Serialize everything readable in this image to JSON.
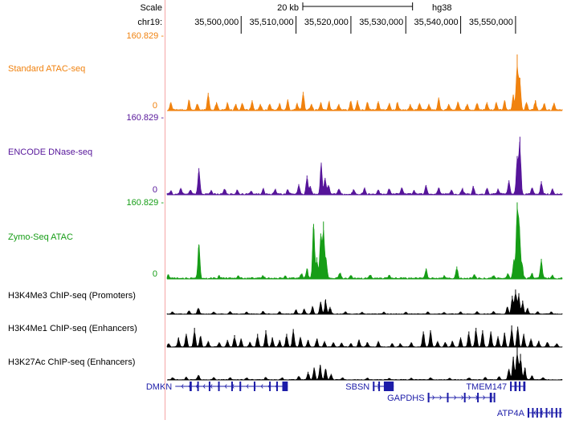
{
  "chart_data": {
    "type": "area",
    "genome": "hg38",
    "chromosome": "chr19",
    "ruler": {
      "scale_label": "Scale",
      "scale_bar_label": "20 kb",
      "scale_bar_kb": 20,
      "chrom_label": "chr19:",
      "tick_positions": [
        35500000,
        35510000,
        35520000,
        35530000,
        35540000,
        35550000
      ],
      "tick_labels": [
        "35,500,000",
        "35,510,000",
        "35,520,000",
        "35,530,000",
        "35,540,000",
        "35,550,000"
      ]
    },
    "x_range_bp": [
      35486500,
      35558500
    ],
    "tracks": [
      {
        "name": "Standard ATAC-seq",
        "color": "#f0820f",
        "ymax_label": "160.829",
        "ymin_label": "0",
        "ylim": [
          0,
          160.829
        ],
        "peaks": [
          [
            35487200,
            18
          ],
          [
            35490500,
            22
          ],
          [
            35492000,
            14
          ],
          [
            35494000,
            38
          ],
          [
            35495500,
            18
          ],
          [
            35497500,
            16
          ],
          [
            35499000,
            14
          ],
          [
            35500200,
            16
          ],
          [
            35502000,
            22
          ],
          [
            35503500,
            14
          ],
          [
            35505200,
            14
          ],
          [
            35507000,
            16
          ],
          [
            35508500,
            24
          ],
          [
            35510200,
            14
          ],
          [
            35511300,
            40
          ],
          [
            35512800,
            14
          ],
          [
            35514500,
            18
          ],
          [
            35516000,
            18
          ],
          [
            35517800,
            14
          ],
          [
            35520000,
            20
          ],
          [
            35521200,
            22
          ],
          [
            35523000,
            18
          ],
          [
            35525000,
            20
          ],
          [
            35527000,
            16
          ],
          [
            35528500,
            18
          ],
          [
            35530800,
            14
          ],
          [
            35532500,
            16
          ],
          [
            35534200,
            14
          ],
          [
            35536000,
            28
          ],
          [
            35537800,
            14
          ],
          [
            35539500,
            18
          ],
          [
            35541200,
            14
          ],
          [
            35543000,
            16
          ],
          [
            35544800,
            18
          ],
          [
            35546500,
            16
          ],
          [
            35548000,
            22
          ],
          [
            35549600,
            34
          ],
          [
            35550300,
            120
          ],
          [
            35550800,
            70
          ],
          [
            35552000,
            18
          ],
          [
            35553600,
            22
          ],
          [
            35555200,
            14
          ],
          [
            35557000,
            16
          ]
        ]
      },
      {
        "name": "ENCODE DNase-seq",
        "color": "#56159a",
        "ymax_label": "160.829",
        "ymin_label": "0",
        "ylim": [
          0,
          160.829
        ],
        "peaks": [
          [
            35487200,
            8
          ],
          [
            35489000,
            14
          ],
          [
            35490800,
            10
          ],
          [
            35492300,
            55
          ],
          [
            35494500,
            8
          ],
          [
            35497000,
            12
          ],
          [
            35499300,
            10
          ],
          [
            35501800,
            8
          ],
          [
            35504000,
            12
          ],
          [
            35506200,
            10
          ],
          [
            35508500,
            10
          ],
          [
            35510500,
            22
          ],
          [
            35512000,
            40
          ],
          [
            35512600,
            18
          ],
          [
            35514600,
            65
          ],
          [
            35515300,
            35
          ],
          [
            35515900,
            20
          ],
          [
            35517800,
            12
          ],
          [
            35520500,
            10
          ],
          [
            35522500,
            14
          ],
          [
            35525000,
            10
          ],
          [
            35527000,
            12
          ],
          [
            35529300,
            14
          ],
          [
            35531500,
            10
          ],
          [
            35533700,
            20
          ],
          [
            35536000,
            14
          ],
          [
            35538300,
            10
          ],
          [
            35540300,
            12
          ],
          [
            35542300,
            18
          ],
          [
            35544800,
            14
          ],
          [
            35546800,
            12
          ],
          [
            35548800,
            30
          ],
          [
            35550300,
            80
          ],
          [
            35550800,
            120
          ],
          [
            35553000,
            14
          ],
          [
            35554700,
            28
          ],
          [
            35556700,
            12
          ]
        ]
      },
      {
        "name": "Zymo-Seq ATAC",
        "color": "#169d16",
        "ymax_label": "160.829",
        "ymin_label": "0",
        "ylim": [
          0,
          160.829
        ],
        "peaks": [
          [
            35486700,
            8
          ],
          [
            35492300,
            72
          ],
          [
            35496000,
            6
          ],
          [
            35499500,
            6
          ],
          [
            35504000,
            6
          ],
          [
            35508000,
            6
          ],
          [
            35511000,
            10
          ],
          [
            35512000,
            22
          ],
          [
            35513200,
            115
          ],
          [
            35513800,
            45
          ],
          [
            35514500,
            95
          ],
          [
            35515000,
            120
          ],
          [
            35515500,
            40
          ],
          [
            35518000,
            12
          ],
          [
            35520000,
            8
          ],
          [
            35523500,
            8
          ],
          [
            35527000,
            8
          ],
          [
            35533700,
            22
          ],
          [
            35537000,
            6
          ],
          [
            35539300,
            26
          ],
          [
            35542500,
            8
          ],
          [
            35546000,
            6
          ],
          [
            35548600,
            10
          ],
          [
            35549700,
            40
          ],
          [
            35550300,
            160
          ],
          [
            35550700,
            110
          ],
          [
            35551200,
            30
          ],
          [
            35553000,
            12
          ],
          [
            35554700,
            42
          ],
          [
            35556700,
            8
          ]
        ]
      },
      {
        "name": "H3K4Me3 ChIP-seq (Promoters)",
        "color": "#000000",
        "peaks": [
          [
            35487500,
            10
          ],
          [
            35490500,
            14
          ],
          [
            35492200,
            25
          ],
          [
            35495000,
            10
          ],
          [
            35498000,
            12
          ],
          [
            35501000,
            10
          ],
          [
            35504000,
            12
          ],
          [
            35507000,
            10
          ],
          [
            35510000,
            18
          ],
          [
            35511500,
            22
          ],
          [
            35513000,
            30
          ],
          [
            35514500,
            50
          ],
          [
            35515400,
            60
          ],
          [
            35516200,
            30
          ],
          [
            35519000,
            10
          ],
          [
            35522000,
            8
          ],
          [
            35526000,
            8
          ],
          [
            35530000,
            8
          ],
          [
            35534000,
            10
          ],
          [
            35537000,
            8
          ],
          [
            35540000,
            10
          ],
          [
            35543000,
            10
          ],
          [
            35546000,
            12
          ],
          [
            35548500,
            30
          ],
          [
            35549400,
            75
          ],
          [
            35550000,
            100
          ],
          [
            35550600,
            85
          ],
          [
            35551300,
            55
          ],
          [
            35552200,
            25
          ],
          [
            35554000,
            10
          ],
          [
            35556500,
            8
          ]
        ]
      },
      {
        "name": "H3K4Me1 ChIP-seq (Enhancers)",
        "color": "#000000",
        "peaks": [
          [
            35486800,
            15
          ],
          [
            35488600,
            40
          ],
          [
            35490000,
            55
          ],
          [
            35491500,
            80
          ],
          [
            35492600,
            45
          ],
          [
            35494000,
            25
          ],
          [
            35496000,
            20
          ],
          [
            35497500,
            30
          ],
          [
            35498800,
            50
          ],
          [
            35500000,
            35
          ],
          [
            35501600,
            20
          ],
          [
            35503000,
            55
          ],
          [
            35504500,
            70
          ],
          [
            35505700,
            40
          ],
          [
            35507000,
            30
          ],
          [
            35508300,
            55
          ],
          [
            35509500,
            75
          ],
          [
            35510800,
            40
          ],
          [
            35512200,
            30
          ],
          [
            35513800,
            35
          ],
          [
            35515200,
            25
          ],
          [
            35516800,
            20
          ],
          [
            35518300,
            18
          ],
          [
            35520000,
            15
          ],
          [
            35521500,
            30
          ],
          [
            35523000,
            20
          ],
          [
            35525000,
            25
          ],
          [
            35527500,
            15
          ],
          [
            35529000,
            15
          ],
          [
            35531000,
            20
          ],
          [
            35533200,
            65
          ],
          [
            35534500,
            70
          ],
          [
            35535800,
            25
          ],
          [
            35537200,
            20
          ],
          [
            35538500,
            25
          ],
          [
            35540000,
            40
          ],
          [
            35541500,
            65
          ],
          [
            35542800,
            80
          ],
          [
            35544000,
            70
          ],
          [
            35545500,
            65
          ],
          [
            35546800,
            45
          ],
          [
            35548000,
            60
          ],
          [
            35549300,
            90
          ],
          [
            35550400,
            85
          ],
          [
            35551500,
            55
          ],
          [
            35552800,
            35
          ],
          [
            35554200,
            25
          ],
          [
            35555800,
            20
          ],
          [
            35557500,
            15
          ]
        ]
      },
      {
        "name": "H3K27Ac ChIP-seq (Enhancers)",
        "color": "#000000",
        "peaks": [
          [
            35487500,
            8
          ],
          [
            35490000,
            10
          ],
          [
            35492200,
            18
          ],
          [
            35495000,
            8
          ],
          [
            35498000,
            8
          ],
          [
            35501000,
            8
          ],
          [
            35504500,
            10
          ],
          [
            35507500,
            8
          ],
          [
            35510500,
            14
          ],
          [
            35512200,
            30
          ],
          [
            35513300,
            45
          ],
          [
            35514400,
            55
          ],
          [
            35515400,
            40
          ],
          [
            35516400,
            22
          ],
          [
            35518500,
            8
          ],
          [
            35523000,
            6
          ],
          [
            35527000,
            6
          ],
          [
            35531000,
            6
          ],
          [
            35534500,
            8
          ],
          [
            35538000,
            6
          ],
          [
            35541500,
            8
          ],
          [
            35544500,
            10
          ],
          [
            35547000,
            12
          ],
          [
            35548800,
            40
          ],
          [
            35549600,
            85
          ],
          [
            35550300,
            120
          ],
          [
            35550900,
            95
          ],
          [
            35551700,
            45
          ],
          [
            35553000,
            15
          ],
          [
            35555000,
            8
          ]
        ]
      }
    ],
    "genes": [
      {
        "name": "DMKN",
        "start": 35488000,
        "end": 35508500,
        "strand": "-",
        "row": 1,
        "label_side": "left",
        "exons": [
          [
            35490600,
            35491000
          ],
          [
            35492000,
            35492200
          ],
          [
            35494100,
            35494300
          ],
          [
            35495800,
            35496000
          ],
          [
            35498200,
            35498400
          ],
          [
            35499700,
            35500000
          ],
          [
            35502300,
            35502500
          ],
          [
            35505100,
            35505300
          ],
          [
            35506400,
            35506700
          ],
          [
            35507500,
            35508500
          ]
        ]
      },
      {
        "name": "SBSN",
        "start": 35524000,
        "end": 35527800,
        "strand": "+",
        "row": 1,
        "label_side": "left",
        "exons": [
          [
            35524000,
            35524300
          ],
          [
            35525000,
            35525200
          ],
          [
            35526000,
            35527800
          ]
        ]
      },
      {
        "name": "GAPDHS",
        "start": 35534000,
        "end": 35546000,
        "strand": "+",
        "row": 2,
        "label_side": "left",
        "exons": [
          [
            35534000,
            35534300
          ],
          [
            35537500,
            35537700
          ],
          [
            35540600,
            35540800
          ],
          [
            35543000,
            35543200
          ],
          [
            35545300,
            35545700
          ],
          [
            35546000,
            35546200
          ]
        ]
      },
      {
        "name": "TMEM147",
        "start": 35549000,
        "end": 35551800,
        "strand": "+",
        "row": 1,
        "label_side": "left",
        "exons": [
          [
            35549000,
            35549300
          ],
          [
            35549800,
            35550200
          ],
          [
            35550600,
            35550900
          ],
          [
            35551400,
            35551800
          ]
        ]
      },
      {
        "name": "ATP4A",
        "start": 35552200,
        "end": 35558500,
        "strand": "-",
        "row": 3,
        "label_side": "left",
        "exons": [
          [
            35552200,
            35552500
          ],
          [
            35553000,
            35553200
          ],
          [
            35553800,
            35554000
          ],
          [
            35554500,
            35554800
          ],
          [
            35555500,
            35555800
          ],
          [
            35556500,
            35556700
          ],
          [
            35557300,
            35557500
          ],
          [
            35558000,
            35558300
          ]
        ]
      }
    ]
  }
}
